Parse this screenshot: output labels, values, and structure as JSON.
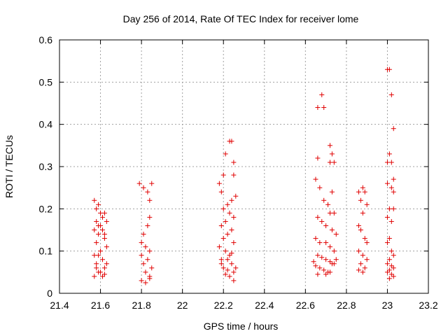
{
  "chart_data": {
    "type": "scatter",
    "title": "Day 256 of 2014, Rate Of TEC Index for receiver lome",
    "xlabel": "GPS time / hours",
    "ylabel": "ROTI / TECUs",
    "xlim": [
      21.4,
      23.2
    ],
    "ylim": [
      0,
      0.6
    ],
    "xticks": [
      "21.4",
      "21.6",
      "21.8",
      "22",
      "22.2",
      "22.4",
      "22.6",
      "22.8",
      "23",
      "23.2"
    ],
    "yticks": [
      "0",
      "0.1",
      "0.2",
      "0.3",
      "0.4",
      "0.5",
      "0.6"
    ],
    "grid": true,
    "marker": "+",
    "color": "#e00000",
    "series": [
      {
        "name": "ROTI",
        "points": [
          [
            21.57,
            0.22
          ],
          [
            21.58,
            0.2
          ],
          [
            21.58,
            0.17
          ],
          [
            21.57,
            0.15
          ],
          [
            21.59,
            0.14
          ],
          [
            21.58,
            0.12
          ],
          [
            21.57,
            0.09
          ],
          [
            21.58,
            0.07
          ],
          [
            21.59,
            0.05
          ],
          [
            21.57,
            0.04
          ],
          [
            21.6,
            0.19
          ],
          [
            21.61,
            0.18
          ],
          [
            21.6,
            0.16
          ],
          [
            21.61,
            0.15
          ],
          [
            21.62,
            0.13
          ],
          [
            21.6,
            0.1
          ],
          [
            21.61,
            0.08
          ],
          [
            21.62,
            0.06
          ],
          [
            21.6,
            0.05
          ],
          [
            21.61,
            0.04
          ],
          [
            21.59,
            0.21
          ],
          [
            21.62,
            0.19
          ],
          [
            21.63,
            0.17
          ],
          [
            21.59,
            0.16
          ],
          [
            21.62,
            0.14
          ],
          [
            21.63,
            0.11
          ],
          [
            21.59,
            0.09
          ],
          [
            21.63,
            0.07
          ],
          [
            21.58,
            0.06
          ],
          [
            21.62,
            0.045
          ],
          [
            21.79,
            0.26
          ],
          [
            21.81,
            0.25
          ],
          [
            21.83,
            0.24
          ],
          [
            21.84,
            0.22
          ],
          [
            21.85,
            0.26
          ],
          [
            21.84,
            0.18
          ],
          [
            21.83,
            0.16
          ],
          [
            21.81,
            0.14
          ],
          [
            21.8,
            0.12
          ],
          [
            21.82,
            0.11
          ],
          [
            21.84,
            0.1
          ],
          [
            21.8,
            0.09
          ],
          [
            21.83,
            0.08
          ],
          [
            21.81,
            0.07
          ],
          [
            21.85,
            0.06
          ],
          [
            21.82,
            0.05
          ],
          [
            21.84,
            0.04
          ],
          [
            21.8,
            0.03
          ],
          [
            21.82,
            0.025
          ],
          [
            21.84,
            0.035
          ],
          [
            22.18,
            0.26
          ],
          [
            22.2,
            0.28
          ],
          [
            22.21,
            0.33
          ],
          [
            22.23,
            0.36
          ],
          [
            22.24,
            0.36
          ],
          [
            22.25,
            0.31
          ],
          [
            22.25,
            0.28
          ],
          [
            22.26,
            0.23
          ],
          [
            22.24,
            0.22
          ],
          [
            22.22,
            0.21
          ],
          [
            22.19,
            0.24
          ],
          [
            22.2,
            0.2
          ],
          [
            22.23,
            0.19
          ],
          [
            22.25,
            0.18
          ],
          [
            22.21,
            0.17
          ],
          [
            22.19,
            0.16
          ],
          [
            22.24,
            0.15
          ],
          [
            22.22,
            0.14
          ],
          [
            22.2,
            0.13
          ],
          [
            22.25,
            0.12
          ],
          [
            22.18,
            0.11
          ],
          [
            22.21,
            0.1
          ],
          [
            22.23,
            0.09
          ],
          [
            22.19,
            0.08
          ],
          [
            22.24,
            0.07
          ],
          [
            22.2,
            0.06
          ],
          [
            22.22,
            0.055
          ],
          [
            22.25,
            0.05
          ],
          [
            22.23,
            0.04
          ],
          [
            22.25,
            0.03
          ],
          [
            22.19,
            0.07
          ],
          [
            22.22,
            0.08
          ],
          [
            22.24,
            0.095
          ],
          [
            22.26,
            0.06
          ],
          [
            22.21,
            0.045
          ],
          [
            22.66,
            0.44
          ],
          [
            22.68,
            0.47
          ],
          [
            22.69,
            0.44
          ],
          [
            22.72,
            0.35
          ],
          [
            22.73,
            0.33
          ],
          [
            22.72,
            0.31
          ],
          [
            22.74,
            0.31
          ],
          [
            22.66,
            0.32
          ],
          [
            22.65,
            0.27
          ],
          [
            22.67,
            0.25
          ],
          [
            22.69,
            0.22
          ],
          [
            22.71,
            0.21
          ],
          [
            22.73,
            0.24
          ],
          [
            22.74,
            0.19
          ],
          [
            22.72,
            0.19
          ],
          [
            22.66,
            0.18
          ],
          [
            22.68,
            0.17
          ],
          [
            22.7,
            0.16
          ],
          [
            22.73,
            0.15
          ],
          [
            22.75,
            0.14
          ],
          [
            22.65,
            0.13
          ],
          [
            22.67,
            0.12
          ],
          [
            22.7,
            0.12
          ],
          [
            22.72,
            0.11
          ],
          [
            22.74,
            0.1
          ],
          [
            22.66,
            0.09
          ],
          [
            22.68,
            0.085
          ],
          [
            22.7,
            0.08
          ],
          [
            22.72,
            0.075
          ],
          [
            22.74,
            0.07
          ],
          [
            22.65,
            0.065
          ],
          [
            22.67,
            0.06
          ],
          [
            22.69,
            0.055
          ],
          [
            22.71,
            0.05
          ],
          [
            22.73,
            0.07
          ],
          [
            22.75,
            0.08
          ],
          [
            22.64,
            0.075
          ],
          [
            22.7,
            0.045
          ],
          [
            22.66,
            0.045
          ],
          [
            22.72,
            0.05
          ],
          [
            22.86,
            0.24
          ],
          [
            22.87,
            0.22
          ],
          [
            22.88,
            0.25
          ],
          [
            22.89,
            0.24
          ],
          [
            22.9,
            0.21
          ],
          [
            22.88,
            0.19
          ],
          [
            22.86,
            0.16
          ],
          [
            22.87,
            0.15
          ],
          [
            22.89,
            0.13
          ],
          [
            22.9,
            0.12
          ],
          [
            22.86,
            0.1
          ],
          [
            22.88,
            0.09
          ],
          [
            22.9,
            0.08
          ],
          [
            22.87,
            0.07
          ],
          [
            22.89,
            0.06
          ],
          [
            22.86,
            0.055
          ],
          [
            22.88,
            0.05
          ],
          [
            23.0,
            0.53
          ],
          [
            23.01,
            0.53
          ],
          [
            23.02,
            0.47
          ],
          [
            23.03,
            0.39
          ],
          [
            23.01,
            0.33
          ],
          [
            23.0,
            0.31
          ],
          [
            23.02,
            0.31
          ],
          [
            23.03,
            0.27
          ],
          [
            23.0,
            0.26
          ],
          [
            23.02,
            0.25
          ],
          [
            23.03,
            0.24
          ],
          [
            23.01,
            0.2
          ],
          [
            23.03,
            0.2
          ],
          [
            23.0,
            0.18
          ],
          [
            23.02,
            0.17
          ],
          [
            23.01,
            0.13
          ],
          [
            23.0,
            0.12
          ],
          [
            23.02,
            0.1
          ],
          [
            23.03,
            0.09
          ],
          [
            23.01,
            0.08
          ],
          [
            23.0,
            0.07
          ],
          [
            23.02,
            0.065
          ],
          [
            23.03,
            0.06
          ],
          [
            23.01,
            0.055
          ],
          [
            23.0,
            0.05
          ],
          [
            23.02,
            0.045
          ],
          [
            23.03,
            0.04
          ],
          [
            23.01,
            0.035
          ]
        ]
      }
    ]
  }
}
